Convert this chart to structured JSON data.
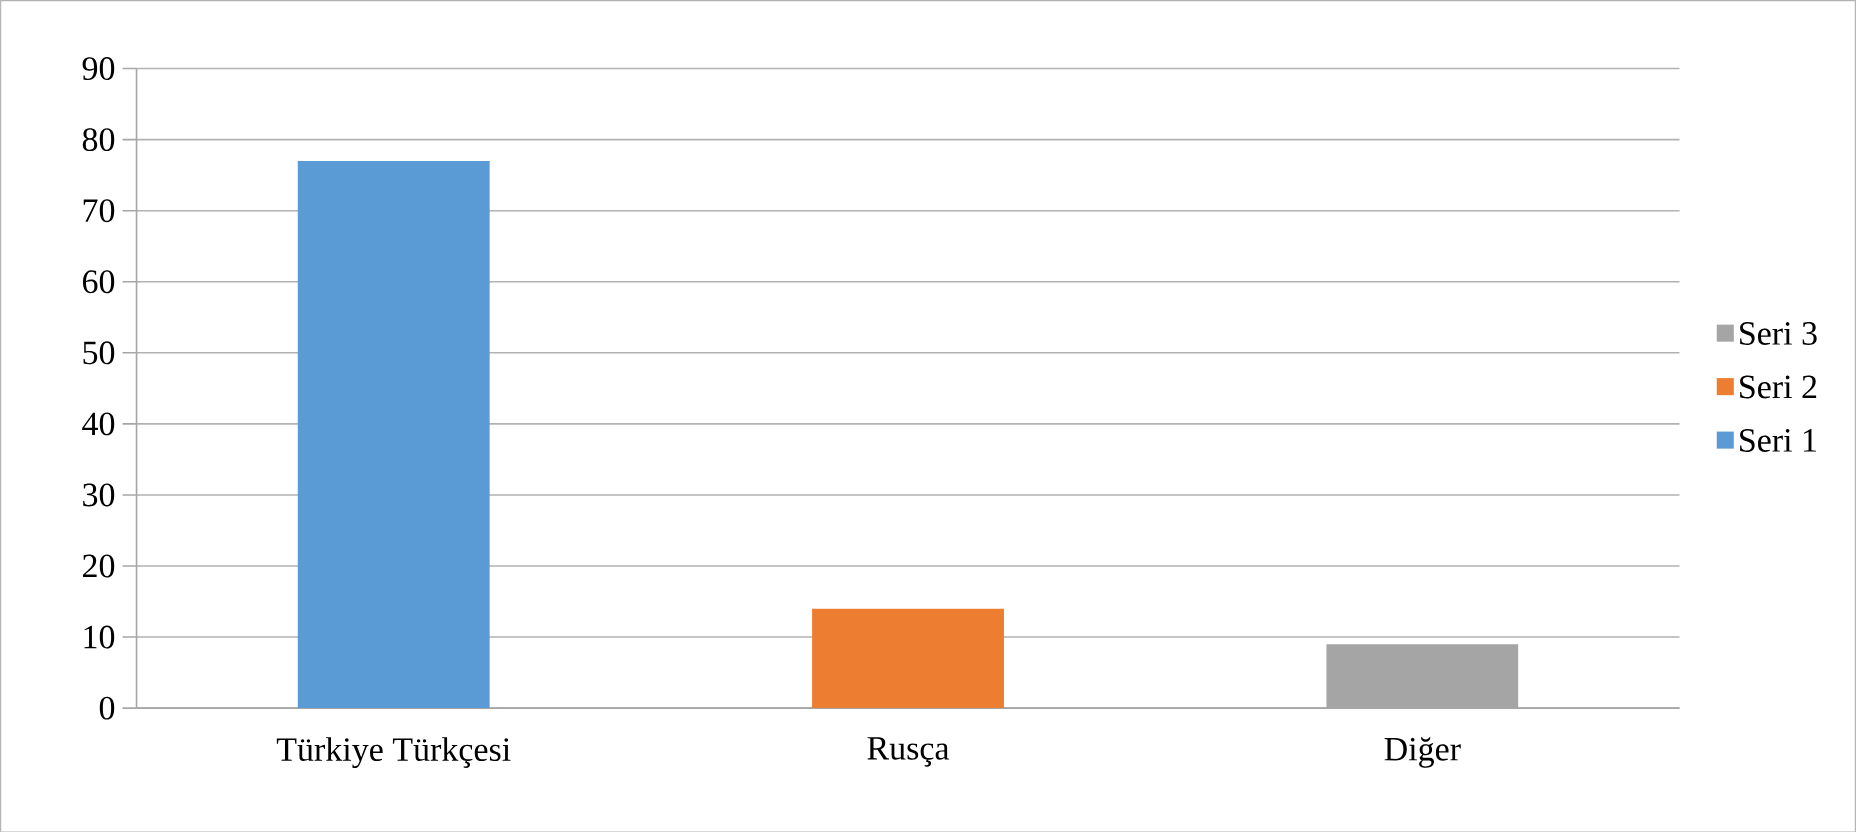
{
  "chart_data": {
    "type": "bar",
    "categories": [
      "Türkiye Türkçesi",
      "Rusça",
      "Diğer"
    ],
    "series": [
      {
        "name": "Seri 1",
        "color": "#5b9bd5",
        "values": [
          77,
          null,
          null
        ]
      },
      {
        "name": "Seri 2",
        "color": "#ed7d31",
        "values": [
          null,
          14,
          null
        ]
      },
      {
        "name": "Seri 3",
        "color": "#a5a5a5",
        "values": [
          null,
          null,
          9
        ]
      }
    ],
    "ylim": [
      0,
      90
    ],
    "yticks": [
      0,
      10,
      20,
      30,
      40,
      50,
      60,
      70,
      80,
      90
    ],
    "grid": "y",
    "legend": "right"
  }
}
